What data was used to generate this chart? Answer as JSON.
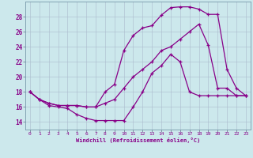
{
  "bg_color": "#cce8ec",
  "line_color": "#880088",
  "grid_color": "#aabbcc",
  "xlabel": "Windchill (Refroidissement éolien,°C)",
  "xlim": [
    -0.5,
    23.5
  ],
  "ylim": [
    13.0,
    30.0
  ],
  "yticks": [
    14,
    16,
    18,
    20,
    22,
    24,
    26,
    28
  ],
  "xticks": [
    0,
    1,
    2,
    3,
    4,
    5,
    6,
    7,
    8,
    9,
    10,
    11,
    12,
    13,
    14,
    15,
    16,
    17,
    18,
    19,
    20,
    21,
    22,
    23
  ],
  "line1_x": [
    0,
    1,
    2,
    3,
    4,
    5,
    6,
    7,
    8,
    9,
    10,
    11,
    12,
    13,
    14,
    15,
    16,
    17,
    18,
    19,
    20,
    21,
    22,
    23
  ],
  "line1_y": [
    18,
    17,
    16.2,
    16,
    15.8,
    15,
    14.5,
    14.2,
    14.2,
    14.2,
    14.2,
    16,
    18,
    20.5,
    21.5,
    23,
    22,
    18,
    17.5,
    17.5,
    17.5,
    17.5,
    17.5,
    17.5
  ],
  "line2_x": [
    0,
    1,
    2,
    3,
    4,
    5,
    6,
    7,
    8,
    9,
    10,
    11,
    12,
    13,
    14,
    15,
    16,
    17,
    18,
    19,
    20,
    21,
    22,
    23
  ],
  "line2_y": [
    18,
    17,
    16.5,
    16.2,
    16.2,
    16.2,
    16,
    16,
    18,
    19,
    23.5,
    25.5,
    26.5,
    26.8,
    28.2,
    29.2,
    29.3,
    29.3,
    29.0,
    28.3,
    28.3,
    21,
    18.5,
    17.5
  ],
  "line3_x": [
    0,
    1,
    2,
    3,
    4,
    5,
    6,
    7,
    8,
    9,
    10,
    11,
    12,
    13,
    14,
    15,
    16,
    17,
    18,
    19,
    20,
    21,
    22,
    23
  ],
  "line3_y": [
    18,
    17,
    16.5,
    16.2,
    16.2,
    16.2,
    16,
    16,
    16.5,
    17,
    18.5,
    20,
    21,
    22,
    23.5,
    24,
    25,
    26,
    27,
    24.2,
    18.5,
    18.5,
    17.5,
    17.5
  ]
}
